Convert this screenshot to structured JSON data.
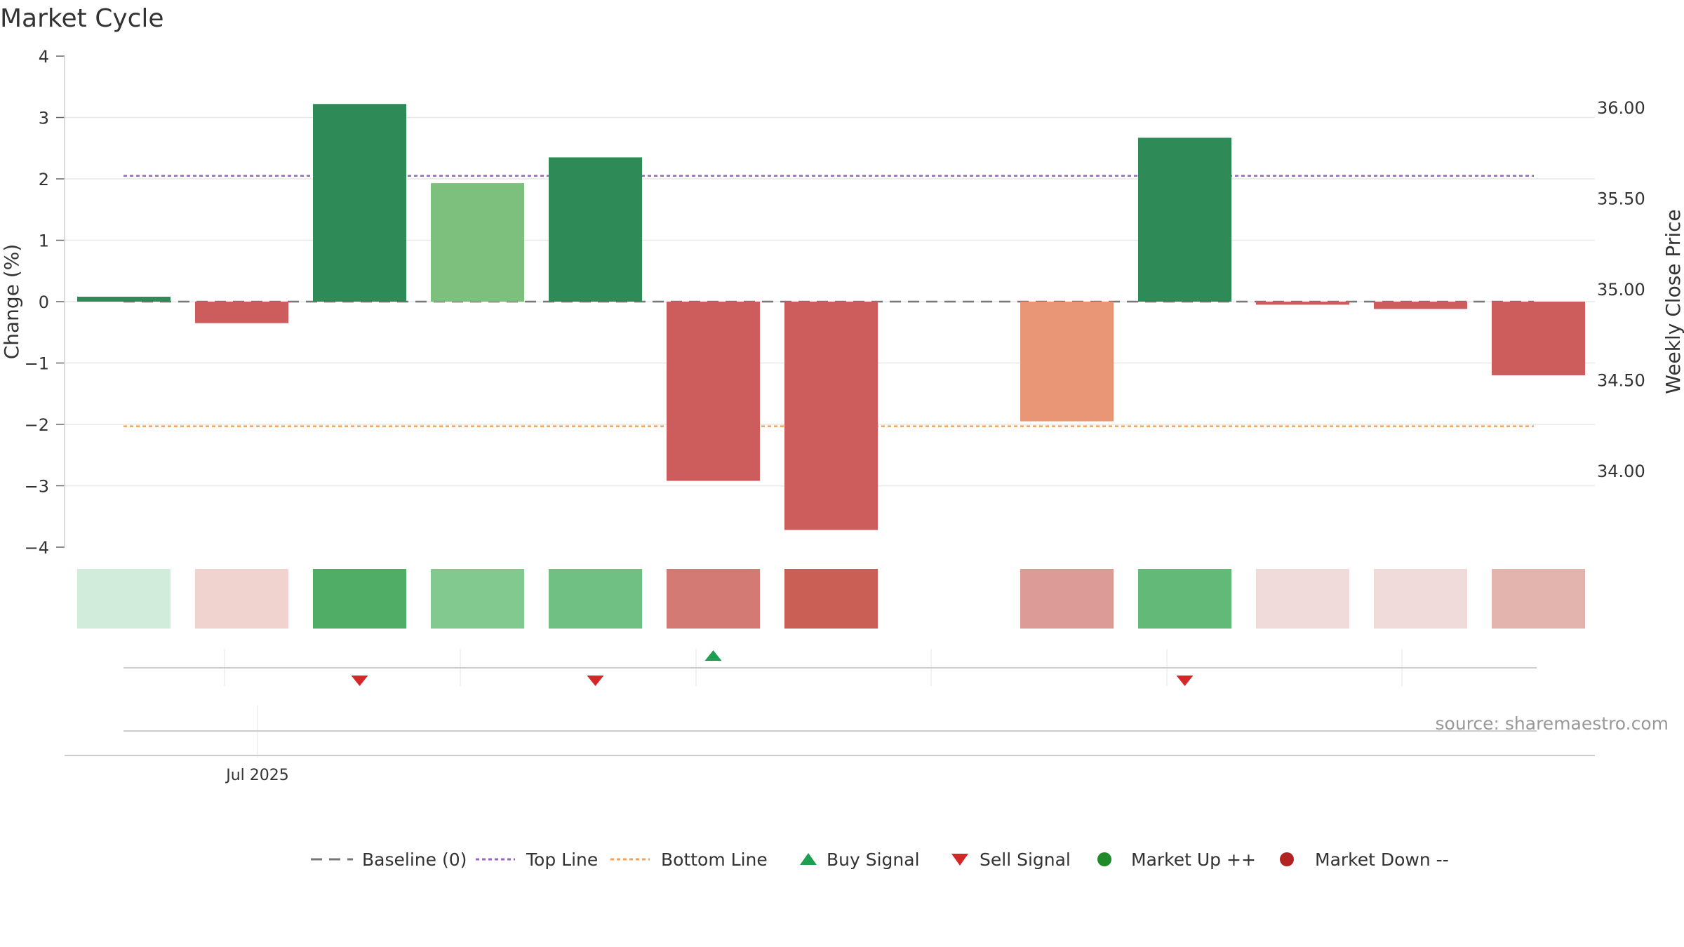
{
  "chart_data": {
    "type": "bar",
    "title": "Market Cycle",
    "ylabel": "Change (%)",
    "y2label": "Weekly Close Price",
    "ylim": [
      -4,
      4
    ],
    "yticks": [
      4,
      3,
      2,
      1,
      0,
      -1,
      -2,
      -3,
      -4
    ],
    "y2lim": [
      33.45,
      36.3
    ],
    "y2ticks": [
      36.0,
      35.5,
      35.0,
      34.5,
      34.0
    ],
    "xtick_label": "Jul 2025",
    "values": [
      0.08,
      -0.35,
      3.22,
      1.93,
      2.35,
      -2.92,
      -3.72,
      null,
      -1.95,
      2.67,
      -0.05,
      -0.12,
      -1.2
    ],
    "bar_colors": [
      "#2e8b57",
      "#cd5c5c",
      "#2e8b57",
      "#7dbf7c",
      "#2e8b57",
      "#cd5c5c",
      "#cd5c5c",
      null,
      "#e89676",
      "#2e8b57",
      "#cd5c5c",
      "#cd5c5c",
      "#cd5c5c"
    ],
    "heat_colors": [
      "#d2ecdc",
      "#f0d2ce",
      "#4fad66",
      "#82c98f",
      "#70c084",
      "#d37a74",
      "#c95f55",
      null,
      "#dd9b97",
      "#63ba78",
      "#f0dada",
      "#f0dada",
      "#e3b3ae"
    ],
    "top_line": 2.05,
    "bottom_line": -2.03,
    "baseline": 0,
    "buy_signals": [
      5
    ],
    "sell_signals": [
      2,
      4,
      9
    ],
    "source": "source: sharemaestro.com",
    "legend": [
      {
        "label": "Baseline (0)",
        "marker": "dash",
        "color": "#777777"
      },
      {
        "label": "Top Line",
        "marker": "dotted",
        "color": "#9467bd"
      },
      {
        "label": "Bottom Line",
        "marker": "dotted",
        "color": "#f2a25c"
      },
      {
        "label": "Buy Signal",
        "marker": "triangle-up",
        "color": "#1e9e50"
      },
      {
        "label": "Sell Signal",
        "marker": "triangle-down",
        "color": "#d62728"
      },
      {
        "label": "Market Up ++",
        "marker": "circle",
        "color": "#1f8a2a"
      },
      {
        "label": "Market Down --",
        "marker": "circle",
        "color": "#b22222"
      }
    ]
  }
}
